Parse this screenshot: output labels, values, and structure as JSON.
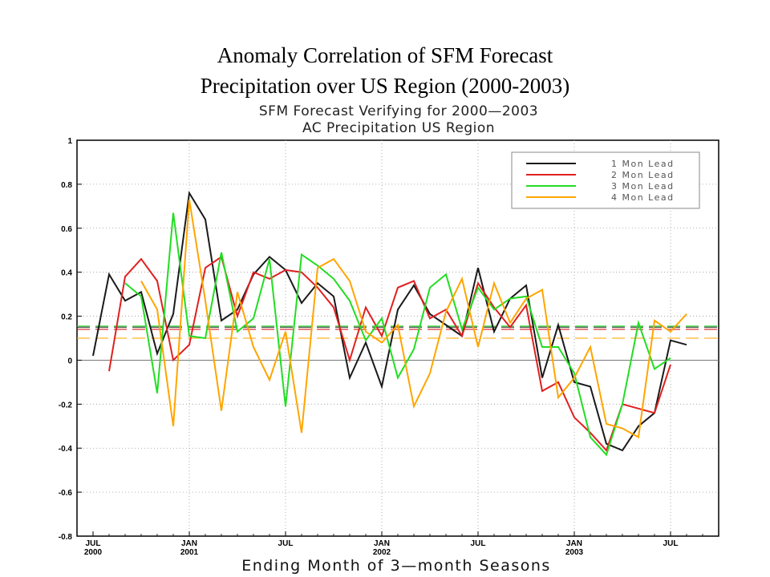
{
  "slide": {
    "title_line1": "Anomaly Correlation of SFM Forecast",
    "title_line2": "Precipitation over US Region (2000-2003)"
  },
  "chart_data": {
    "type": "line",
    "title": "SFM Forecast Verifying for 2000—2003",
    "subtitle": "AC Precipitation US Region",
    "xlabel": "Ending Month of 3—month Seasons",
    "ylabel": "",
    "ylim": [
      -0.8,
      1
    ],
    "yticks": [
      -0.8,
      -0.6,
      -0.4,
      -0.2,
      0,
      0.2,
      0.4,
      0.6,
      0.8,
      1
    ],
    "ytick_labels": [
      "-0.8",
      "-0.6",
      "-0.4",
      "-0.2",
      "0",
      "0.2",
      "0.4",
      "0.6",
      "0.8",
      "1"
    ],
    "xlim": [
      "2000-07",
      "2003-09"
    ],
    "x": [
      "2000-07",
      "2000-08",
      "2000-09",
      "2000-10",
      "2000-11",
      "2000-12",
      "2001-01",
      "2001-02",
      "2001-03",
      "2001-04",
      "2001-05",
      "2001-06",
      "2001-07",
      "2001-08",
      "2001-09",
      "2001-10",
      "2001-11",
      "2001-12",
      "2002-01",
      "2002-02",
      "2002-03",
      "2002-04",
      "2002-05",
      "2002-06",
      "2002-07",
      "2002-08",
      "2002-09",
      "2002-10",
      "2002-11",
      "2002-12",
      "2003-01",
      "2003-02",
      "2003-03",
      "2003-04",
      "2003-05",
      "2003-06",
      "2003-07",
      "2003-08"
    ],
    "xticks": [
      {
        "x": "2000-07",
        "month": "JUL",
        "year": "2000"
      },
      {
        "x": "2001-01",
        "month": "JAN",
        "year": "2001"
      },
      {
        "x": "2001-07",
        "month": "JUL",
        "year": ""
      },
      {
        "x": "2002-01",
        "month": "JAN",
        "year": "2002"
      },
      {
        "x": "2002-07",
        "month": "JUL",
        "year": ""
      },
      {
        "x": "2003-01",
        "month": "JAN",
        "year": "2003"
      },
      {
        "x": "2003-07",
        "month": "JUL",
        "year": ""
      }
    ],
    "grid": true,
    "legend": "top-right",
    "series": [
      {
        "name": "1 Mon Lead",
        "color": "#1a1a1a",
        "mean": 0.15,
        "values": [
          0.02,
          0.39,
          0.27,
          0.31,
          0.03,
          0.21,
          0.76,
          0.64,
          0.18,
          0.23,
          0.39,
          0.47,
          0.41,
          0.26,
          0.35,
          0.29,
          -0.08,
          0.08,
          -0.12,
          0.23,
          0.34,
          0.21,
          0.16,
          0.11,
          0.42,
          0.13,
          0.28,
          0.34,
          -0.08,
          0.16,
          -0.1,
          -0.12,
          -0.38,
          -0.41,
          -0.3,
          -0.24,
          0.09,
          0.07
        ]
      },
      {
        "name": "2 Mon Lead",
        "color": "#e02020",
        "mean": 0.14,
        "values": [
          null,
          -0.05,
          0.38,
          0.46,
          0.36,
          0.0,
          0.07,
          0.42,
          0.47,
          0.2,
          0.4,
          0.37,
          0.41,
          0.4,
          0.33,
          0.24,
          0.0,
          0.24,
          0.11,
          0.33,
          0.36,
          0.19,
          0.23,
          0.11,
          0.35,
          0.24,
          0.15,
          0.25,
          -0.14,
          -0.1,
          -0.26,
          -0.33,
          -0.41,
          -0.2,
          -0.22,
          -0.24,
          -0.02,
          null
        ]
      },
      {
        "name": "3 Mon Lead",
        "color": "#22dd22",
        "mean": 0.155,
        "values": [
          null,
          null,
          0.35,
          0.29,
          -0.15,
          0.67,
          0.11,
          0.1,
          0.49,
          0.13,
          0.19,
          0.46,
          -0.21,
          0.48,
          0.43,
          0.37,
          0.27,
          0.09,
          0.19,
          -0.08,
          0.05,
          0.33,
          0.39,
          0.14,
          0.33,
          0.23,
          0.28,
          0.29,
          0.06,
          0.06,
          -0.06,
          -0.35,
          -0.43,
          -0.2,
          0.17,
          -0.04,
          0.01,
          null
        ]
      },
      {
        "name": "4 Mon Lead",
        "color": "#ffa500",
        "mean": 0.1,
        "values": [
          null,
          null,
          null,
          0.36,
          0.23,
          -0.3,
          0.73,
          0.27,
          -0.23,
          0.31,
          0.06,
          -0.09,
          0.13,
          -0.33,
          0.42,
          0.46,
          0.36,
          0.13,
          0.08,
          0.16,
          -0.21,
          -0.06,
          0.22,
          0.37,
          0.06,
          0.35,
          0.17,
          0.28,
          0.32,
          -0.17,
          -0.08,
          0.06,
          -0.29,
          -0.31,
          -0.35,
          0.18,
          0.13,
          0.21
        ]
      }
    ]
  }
}
